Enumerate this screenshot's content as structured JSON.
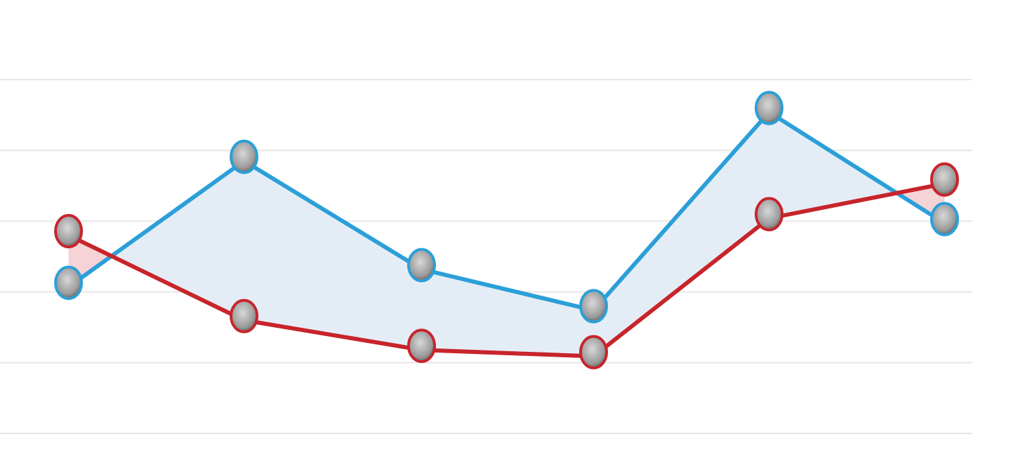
{
  "chart_data": {
    "type": "line",
    "categories": [
      null,
      null,
      null,
      null,
      null,
      null
    ],
    "series": [
      {
        "color": "#2b9fd8",
        "values": [
          2.07,
          3.85,
          2.32,
          1.74,
          4.54,
          2.97
        ]
      },
      {
        "color": "#c8242b",
        "values": [
          2.8,
          1.6,
          1.18,
          1.09,
          3.04,
          3.53
        ]
      }
    ],
    "ylim": [
      0,
      5
    ],
    "yticks": [
      0,
      1,
      2,
      3,
      4,
      5
    ],
    "grid": true
  }
}
